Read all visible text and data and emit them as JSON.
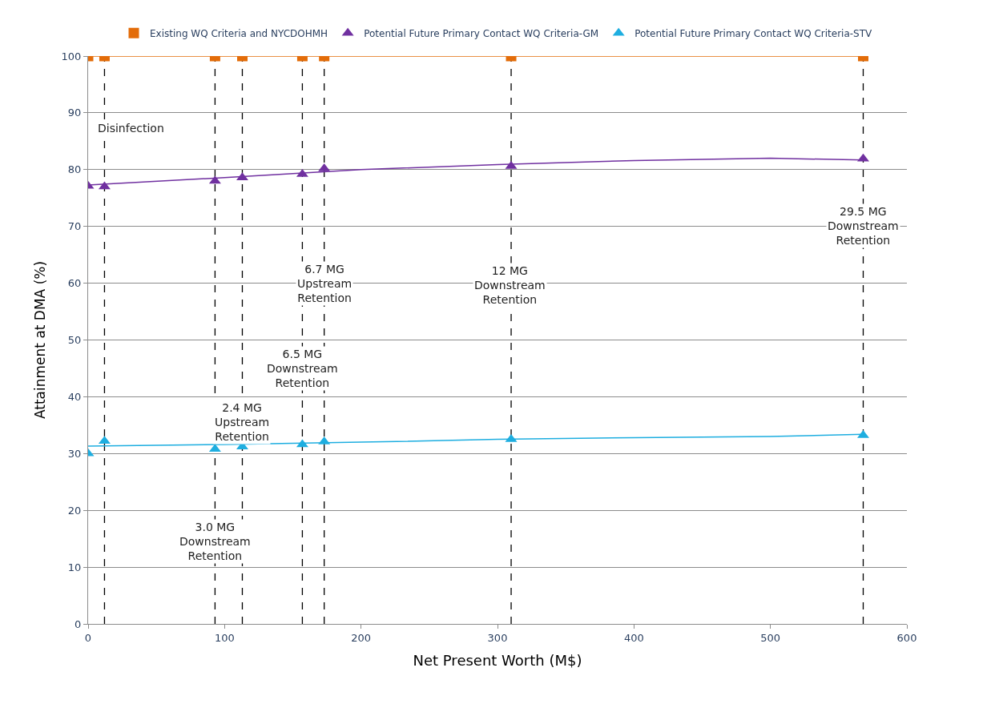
{
  "chart_data": {
    "type": "scatter",
    "xlabel": "Net Present Worth (M$)",
    "ylabel": "Attainment at DMA (%)",
    "xlim": [
      0,
      600
    ],
    "xticks": [
      0,
      100,
      200,
      300,
      400,
      500,
      600
    ],
    "ylim": [
      0,
      100
    ],
    "yticks": [
      0,
      10,
      20,
      30,
      40,
      50,
      60,
      70,
      80,
      90,
      100
    ],
    "grid": "y",
    "legend": "top",
    "series": [
      {
        "name": "Existing WQ Criteria and NYCDOHMH",
        "color": "#e36c09",
        "marker": "square",
        "x": [
          0,
          12,
          93,
          113,
          157,
          173,
          310,
          568
        ],
        "values": [
          100,
          100,
          100,
          100,
          100,
          100,
          100,
          100
        ]
      },
      {
        "name": "Potential Future Primary Contact WQ Criteria-GM",
        "color": "#7030a0",
        "marker": "triangle",
        "x": [
          0,
          12,
          93,
          113,
          157,
          173,
          310,
          568
        ],
        "values": [
          77.1,
          77,
          78,
          78.6,
          79.2,
          80.2,
          80.6,
          81.9
        ]
      },
      {
        "name": "Potential Future Primary Contact WQ Criteria-STV",
        "color": "#1eaee0",
        "marker": "triangle",
        "x": [
          0,
          12,
          93,
          113,
          157,
          173,
          310,
          568
        ],
        "values": [
          30,
          32.2,
          30.8,
          31.2,
          31.6,
          32.1,
          32.5,
          33.2
        ]
      },
      {
        "type": "line",
        "color": "#e36c09",
        "marker": "none",
        "x": [
          0,
          568
        ],
        "values": [
          100,
          100
        ]
      },
      {
        "type": "line",
        "color": "#7030a0",
        "marker": "none",
        "x": [
          0,
          100,
          200,
          300,
          400,
          500,
          568
        ],
        "values": [
          77.3,
          78.6,
          80,
          80.9,
          81.6,
          82,
          81.7
        ]
      },
      {
        "type": "line",
        "color": "#1eaee0",
        "marker": "none",
        "x": [
          0,
          100,
          200,
          300,
          400,
          500,
          568
        ],
        "values": [
          31.3,
          31.6,
          32,
          32.5,
          32.8,
          33,
          33.4
        ]
      }
    ],
    "ref_lines": [
      {
        "axis": "x",
        "value": 12,
        "color": "#000000",
        "line_style": "dashed"
      },
      {
        "axis": "x",
        "value": 93,
        "color": "#000000",
        "line_style": "dashed"
      },
      {
        "axis": "x",
        "value": 113,
        "color": "#000000",
        "line_style": "dashed"
      },
      {
        "axis": "x",
        "value": 157,
        "color": "#000000",
        "line_style": "dashed"
      },
      {
        "axis": "x",
        "value": 173,
        "color": "#000000",
        "line_style": "dashed"
      },
      {
        "axis": "x",
        "value": 310,
        "color": "#000000",
        "line_style": "dashed"
      },
      {
        "axis": "x",
        "value": 568,
        "color": "#000000",
        "line_style": "dashed"
      }
    ],
    "annotations": [
      {
        "text": "Disinfection",
        "x": 12,
        "y": 87.3
      },
      {
        "text": "3.0 MG\nDownstream\nRetention",
        "x": 93,
        "y": 14.5
      },
      {
        "text": "2.4 MG\nUpstream\nRetention",
        "x": 113,
        "y": 35.5
      },
      {
        "text": "6.5 MG\nDownstream\nRetention",
        "x": 157,
        "y": 45
      },
      {
        "text": "6.7 MG\nUpstream\nRetention",
        "x": 173,
        "y": 60
      },
      {
        "text": "12 MG\nDownstream\nRetention",
        "x": 309,
        "y": 59.7
      },
      {
        "text": "29.5 MG\nDownstream\nRetention",
        "x": 568,
        "y": 70.1
      }
    ]
  }
}
